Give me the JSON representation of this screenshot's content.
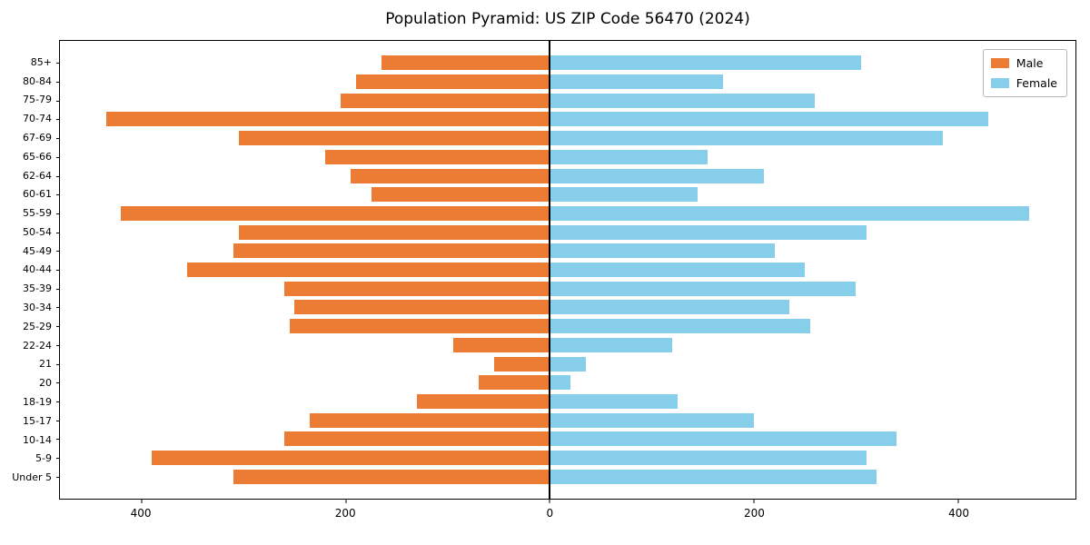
{
  "title": "Population Pyramid: US ZIP Code 56470 (2024)",
  "legend": {
    "male": "Male",
    "female": "Female"
  },
  "colors": {
    "male": "#ec7c34",
    "female": "#87ceeb",
    "axis": "#000000"
  },
  "chart_data": {
    "type": "bar",
    "orientation": "horizontal-pyramid",
    "title": "Population Pyramid: US ZIP Code 56470 (2024)",
    "xlabel": "",
    "ylabel": "",
    "grid": false,
    "legend_position": "upper right",
    "xlim": [
      -480,
      515
    ],
    "x_ticks": [
      -400,
      -200,
      0,
      200,
      400
    ],
    "x_tick_labels": [
      "400",
      "200",
      "0",
      "200",
      "400"
    ],
    "categories": [
      "85+",
      "80-84",
      "75-79",
      "70-74",
      "67-69",
      "65-66",
      "62-64",
      "60-61",
      "55-59",
      "50-54",
      "45-49",
      "40-44",
      "35-39",
      "30-34",
      "25-29",
      "22-24",
      "21",
      "20",
      "18-19",
      "15-17",
      "10-14",
      "5-9",
      "Under 5"
    ],
    "series": [
      {
        "name": "Male",
        "direction": "left",
        "values": [
          165,
          190,
          205,
          435,
          305,
          220,
          195,
          175,
          420,
          305,
          310,
          355,
          260,
          250,
          255,
          95,
          55,
          70,
          130,
          235,
          260,
          390,
          310
        ]
      },
      {
        "name": "Female",
        "direction": "right",
        "values": [
          305,
          170,
          260,
          430,
          385,
          155,
          210,
          145,
          470,
          310,
          220,
          250,
          300,
          235,
          255,
          120,
          35,
          20,
          125,
          200,
          340,
          310,
          320
        ]
      }
    ]
  }
}
